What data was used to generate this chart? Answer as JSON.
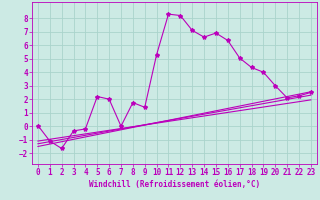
{
  "background_color": "#cceae4",
  "grid_color": "#aad4cc",
  "line_color": "#bb00bb",
  "marker": "*",
  "xlabel": "Windchill (Refroidissement éolien,°C)",
  "xlabel_fontsize": 5.5,
  "tick_fontsize": 5.5,
  "xticks": [
    0,
    1,
    2,
    3,
    4,
    5,
    6,
    7,
    8,
    9,
    10,
    11,
    12,
    13,
    14,
    15,
    16,
    17,
    18,
    19,
    20,
    21,
    22,
    23
  ],
  "yticks": [
    -2,
    -1,
    0,
    1,
    2,
    3,
    4,
    5,
    6,
    7,
    8
  ],
  "ylim": [
    -2.8,
    9.2
  ],
  "xlim": [
    -0.5,
    23.5
  ],
  "series": [
    [
      0,
      0.05
    ],
    [
      1,
      -1.1
    ],
    [
      2,
      -1.65
    ],
    [
      3,
      -0.35
    ],
    [
      4,
      -0.2
    ],
    [
      5,
      2.2
    ],
    [
      6,
      2.0
    ],
    [
      7,
      0.0
    ],
    [
      8,
      1.75
    ],
    [
      9,
      1.4
    ],
    [
      10,
      5.3
    ],
    [
      11,
      8.3
    ],
    [
      12,
      8.2
    ],
    [
      13,
      7.1
    ],
    [
      14,
      6.6
    ],
    [
      15,
      6.9
    ],
    [
      16,
      6.35
    ],
    [
      17,
      5.05
    ],
    [
      18,
      4.35
    ],
    [
      19,
      4.0
    ],
    [
      20,
      3.0
    ],
    [
      21,
      2.1
    ],
    [
      22,
      2.25
    ],
    [
      23,
      2.5
    ]
  ],
  "line2": [
    [
      0,
      -1.5
    ],
    [
      23,
      2.55
    ]
  ],
  "line3": [
    [
      0,
      -1.3
    ],
    [
      23,
      2.3
    ]
  ],
  "line4": [
    [
      0,
      -1.1
    ],
    [
      23,
      1.95
    ]
  ]
}
